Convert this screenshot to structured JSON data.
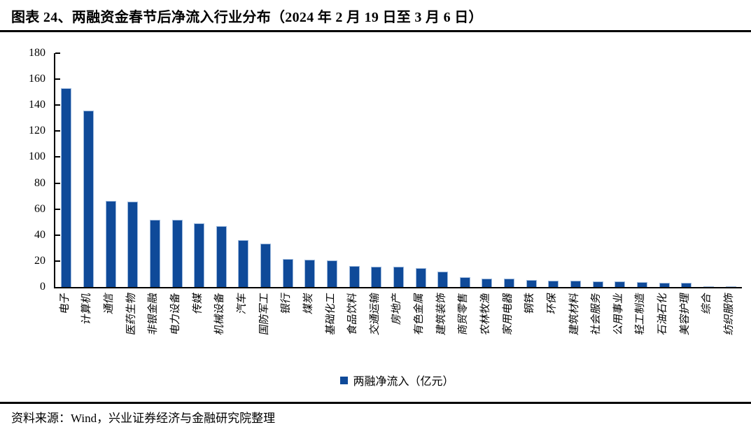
{
  "header": {
    "title": "图表 24、两融资金春节后净流入行业分布（2024 年 2 月 19 日至 3 月 6 日）"
  },
  "chart_data": {
    "type": "bar",
    "title": "两融资金春节后净流入行业分布（2024 年 2 月 19 日至 3 月 6 日）",
    "categories": [
      "电子",
      "计算机",
      "通信",
      "医药生物",
      "非银金融",
      "电力设备",
      "传媒",
      "机械设备",
      "汽车",
      "国防军工",
      "银行",
      "煤炭",
      "基础化工",
      "食品饮料",
      "交通运输",
      "房地产",
      "有色金属",
      "建筑装饰",
      "商贸零售",
      "农林牧渔",
      "家用电器",
      "钢铁",
      "环保",
      "建筑材料",
      "社会服务",
      "公用事业",
      "轻工制造",
      "石油石化",
      "美容护理",
      "综合",
      "纺织服饰"
    ],
    "values": [
      153,
      136,
      66.5,
      66,
      52,
      51.5,
      49,
      47,
      36,
      33.5,
      21.5,
      21,
      20.5,
      16.2,
      15.8,
      15.5,
      14.5,
      12,
      7.5,
      6.3,
      6.2,
      5.6,
      5,
      4.7,
      4.4,
      4.2,
      3.8,
      3.3,
      3.2,
      0.8,
      0.6
    ],
    "legend": [
      "两融净流入（亿元）"
    ],
    "legend_position": "bottom",
    "xlabel": "",
    "ylabel": "",
    "ylim": [
      0,
      180
    ],
    "yticks": [
      0,
      20,
      40,
      60,
      80,
      100,
      120,
      140,
      160,
      180
    ],
    "grid": false,
    "bar_color": "#0F4A99",
    "bar_border_color": "#9DB9DD"
  },
  "footer": {
    "source": "资料来源：Wind，兴业证券经济与金融研究院整理"
  }
}
